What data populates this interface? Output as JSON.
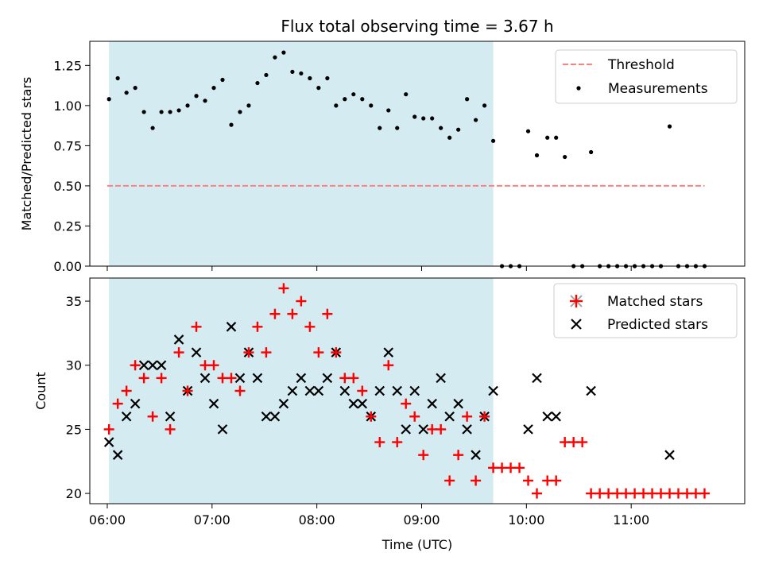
{
  "title": "Flux total observing time = 3.67 h",
  "chart_data": [
    {
      "type": "scatter",
      "panel": "top",
      "ylabel": "Matched/Predicted stars",
      "xlim": [
        "05:50",
        "12:05"
      ],
      "ylim": [
        0,
        1.4
      ],
      "yticks": [
        {
          "v": 0,
          "label": "0.00"
        },
        {
          "v": 0.25,
          "label": "0.25"
        },
        {
          "v": 0.5,
          "label": "0.50"
        },
        {
          "v": 0.75,
          "label": "0.75"
        },
        {
          "v": 1.0,
          "label": "1.00"
        },
        {
          "v": 1.25,
          "label": "1.25"
        }
      ],
      "shaded_span": {
        "x": [
          "06:01",
          "09:41"
        ],
        "color": "#d4ebf1"
      },
      "threshold": {
        "name": "Threshold",
        "value": 0.5,
        "x": [
          "06:00",
          "11:42"
        ],
        "color": "#ff8080"
      },
      "series": [
        {
          "name": "Measurements",
          "color": "#000000",
          "points": [
            [
              "06:01",
              1.04
            ],
            [
              "06:06",
              1.17
            ],
            [
              "06:11",
              1.08
            ],
            [
              "06:16",
              1.11
            ],
            [
              "06:21",
              0.96
            ],
            [
              "06:26",
              0.86
            ],
            [
              "06:31",
              0.96
            ],
            [
              "06:36",
              0.96
            ],
            [
              "06:41",
              0.97
            ],
            [
              "06:46",
              1.0
            ],
            [
              "06:51",
              1.06
            ],
            [
              "06:56",
              1.03
            ],
            [
              "07:01",
              1.11
            ],
            [
              "07:06",
              1.16
            ],
            [
              "07:11",
              0.88
            ],
            [
              "07:16",
              0.96
            ],
            [
              "07:21",
              1.0
            ],
            [
              "07:26",
              1.14
            ],
            [
              "07:31",
              1.19
            ],
            [
              "07:36",
              1.3
            ],
            [
              "07:41",
              1.33
            ],
            [
              "07:46",
              1.21
            ],
            [
              "07:51",
              1.2
            ],
            [
              "07:56",
              1.17
            ],
            [
              "08:01",
              1.11
            ],
            [
              "08:06",
              1.17
            ],
            [
              "08:11",
              1.0
            ],
            [
              "08:16",
              1.04
            ],
            [
              "08:21",
              1.07
            ],
            [
              "08:26",
              1.04
            ],
            [
              "08:31",
              1.0
            ],
            [
              "08:36",
              0.86
            ],
            [
              "08:41",
              0.97
            ],
            [
              "08:46",
              0.86
            ],
            [
              "08:51",
              1.07
            ],
            [
              "08:56",
              0.93
            ],
            [
              "09:01",
              0.92
            ],
            [
              "09:06",
              0.92
            ],
            [
              "09:11",
              0.86
            ],
            [
              "09:16",
              0.8
            ],
            [
              "09:21",
              0.85
            ],
            [
              "09:26",
              1.04
            ],
            [
              "09:31",
              0.91
            ],
            [
              "09:36",
              1.0
            ],
            [
              "09:41",
              0.78
            ],
            [
              "09:46",
              0
            ],
            [
              "09:51",
              0
            ],
            [
              "09:56",
              0
            ],
            [
              "10:01",
              0.84
            ],
            [
              "10:06",
              0.69
            ],
            [
              "10:12",
              0.8
            ],
            [
              "10:17",
              0.8
            ],
            [
              "10:22",
              0.68
            ],
            [
              "10:27",
              0
            ],
            [
              "10:32",
              0
            ],
            [
              "10:37",
              0.71
            ],
            [
              "10:42",
              0
            ],
            [
              "10:47",
              0
            ],
            [
              "10:52",
              0
            ],
            [
              "10:57",
              0
            ],
            [
              "11:02",
              0
            ],
            [
              "11:07",
              0
            ],
            [
              "11:12",
              0
            ],
            [
              "11:17",
              0
            ],
            [
              "11:22",
              0.87
            ],
            [
              "11:27",
              0
            ],
            [
              "11:32",
              0
            ],
            [
              "11:37",
              0
            ],
            [
              "11:42",
              0
            ]
          ]
        }
      ],
      "legend": {
        "position": "top-right",
        "entries": [
          "Threshold",
          "Measurements"
        ]
      }
    },
    {
      "type": "scatter",
      "panel": "bottom",
      "xlabel": "Time (UTC)",
      "ylabel": "Count",
      "xlim": [
        "05:50",
        "12:05"
      ],
      "ylim": [
        19.2,
        36.8
      ],
      "yticks": [
        {
          "v": 20,
          "label": "20"
        },
        {
          "v": 25,
          "label": "25"
        },
        {
          "v": 30,
          "label": "30"
        },
        {
          "v": 35,
          "label": "35"
        }
      ],
      "xticks": [
        {
          "v": "06:00",
          "label": "06:00"
        },
        {
          "v": "07:00",
          "label": "07:00"
        },
        {
          "v": "08:00",
          "label": "08:00"
        },
        {
          "v": "09:00",
          "label": "09:00"
        },
        {
          "v": "10:00",
          "label": "10:00"
        },
        {
          "v": "11:00",
          "label": "11:00"
        }
      ],
      "shaded_span": {
        "x": [
          "06:01",
          "09:41"
        ],
        "color": "#d4ebf1"
      },
      "series": [
        {
          "name": "Matched stars",
          "marker": "plus",
          "color": "#ff0000",
          "points": [
            [
              "06:01",
              25
            ],
            [
              "06:06",
              27
            ],
            [
              "06:11",
              28
            ],
            [
              "06:16",
              30
            ],
            [
              "06:21",
              29
            ],
            [
              "06:26",
              26
            ],
            [
              "06:31",
              29
            ],
            [
              "06:36",
              25
            ],
            [
              "06:41",
              31
            ],
            [
              "06:46",
              28
            ],
            [
              "06:51",
              33
            ],
            [
              "06:56",
              30
            ],
            [
              "07:01",
              30
            ],
            [
              "07:06",
              29
            ],
            [
              "07:11",
              29
            ],
            [
              "07:16",
              28
            ],
            [
              "07:21",
              31
            ],
            [
              "07:26",
              33
            ],
            [
              "07:31",
              31
            ],
            [
              "07:36",
              34
            ],
            [
              "07:41",
              36
            ],
            [
              "07:46",
              34
            ],
            [
              "07:51",
              35
            ],
            [
              "07:56",
              33
            ],
            [
              "08:01",
              31
            ],
            [
              "08:06",
              34
            ],
            [
              "08:11",
              31
            ],
            [
              "08:16",
              29
            ],
            [
              "08:21",
              29
            ],
            [
              "08:26",
              28
            ],
            [
              "08:31",
              26
            ],
            [
              "08:36",
              24
            ],
            [
              "08:41",
              30
            ],
            [
              "08:46",
              24
            ],
            [
              "08:51",
              27
            ],
            [
              "08:56",
              26
            ],
            [
              "09:01",
              23
            ],
            [
              "09:06",
              25
            ],
            [
              "09:11",
              25
            ],
            [
              "09:16",
              21
            ],
            [
              "09:21",
              23
            ],
            [
              "09:26",
              26
            ],
            [
              "09:31",
              21
            ],
            [
              "09:36",
              26
            ],
            [
              "09:41",
              22
            ],
            [
              "09:46",
              22
            ],
            [
              "09:51",
              22
            ],
            [
              "09:56",
              22
            ],
            [
              "10:01",
              21
            ],
            [
              "10:06",
              20
            ],
            [
              "10:12",
              21
            ],
            [
              "10:17",
              21
            ],
            [
              "10:22",
              24
            ],
            [
              "10:27",
              24
            ],
            [
              "10:32",
              24
            ],
            [
              "10:37",
              20
            ],
            [
              "10:42",
              20
            ],
            [
              "10:47",
              20
            ],
            [
              "10:52",
              20
            ],
            [
              "10:57",
              20
            ],
            [
              "11:02",
              20
            ],
            [
              "11:07",
              20
            ],
            [
              "11:12",
              20
            ],
            [
              "11:17",
              20
            ],
            [
              "11:22",
              20
            ],
            [
              "11:27",
              20
            ],
            [
              "11:32",
              20
            ],
            [
              "11:37",
              20
            ],
            [
              "11:42",
              20
            ]
          ]
        },
        {
          "name": "Predicted stars",
          "marker": "x",
          "color": "#000000",
          "points": [
            [
              "06:01",
              24
            ],
            [
              "06:06",
              23
            ],
            [
              "06:11",
              26
            ],
            [
              "06:16",
              27
            ],
            [
              "06:21",
              30
            ],
            [
              "06:26",
              30
            ],
            [
              "06:31",
              30
            ],
            [
              "06:36",
              26
            ],
            [
              "06:41",
              32
            ],
            [
              "06:46",
              28
            ],
            [
              "06:51",
              31
            ],
            [
              "06:56",
              29
            ],
            [
              "07:01",
              27
            ],
            [
              "07:06",
              25
            ],
            [
              "07:11",
              33
            ],
            [
              "07:16",
              29
            ],
            [
              "07:21",
              31
            ],
            [
              "07:26",
              29
            ],
            [
              "07:31",
              26
            ],
            [
              "07:36",
              26
            ],
            [
              "07:41",
              27
            ],
            [
              "07:46",
              28
            ],
            [
              "07:51",
              29
            ],
            [
              "07:56",
              28
            ],
            [
              "08:01",
              28
            ],
            [
              "08:06",
              29
            ],
            [
              "08:11",
              31
            ],
            [
              "08:16",
              28
            ],
            [
              "08:21",
              27
            ],
            [
              "08:26",
              27
            ],
            [
              "08:31",
              26
            ],
            [
              "08:36",
              28
            ],
            [
              "08:41",
              31
            ],
            [
              "08:46",
              28
            ],
            [
              "08:51",
              25
            ],
            [
              "08:56",
              28
            ],
            [
              "09:01",
              25
            ],
            [
              "09:06",
              27
            ],
            [
              "09:11",
              29
            ],
            [
              "09:16",
              26
            ],
            [
              "09:21",
              27
            ],
            [
              "09:26",
              25
            ],
            [
              "09:31",
              23
            ],
            [
              "09:36",
              26
            ],
            [
              "09:41",
              28
            ],
            [
              "10:01",
              25
            ],
            [
              "10:06",
              29
            ],
            [
              "10:12",
              26
            ],
            [
              "10:17",
              26
            ],
            [
              "10:37",
              28
            ],
            [
              "11:22",
              23
            ]
          ]
        }
      ],
      "legend": {
        "position": "top-right",
        "entries": [
          "Matched stars",
          "Predicted stars"
        ]
      }
    }
  ]
}
